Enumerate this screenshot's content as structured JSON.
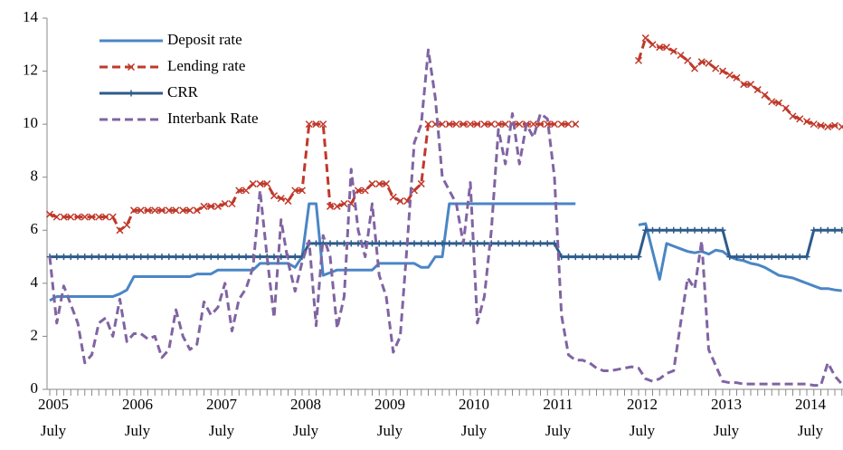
{
  "chart_data": {
    "type": "line",
    "categories": [
      {
        "year": "2005",
        "month": "July"
      },
      null,
      null,
      null,
      null,
      null,
      null,
      null,
      null,
      null,
      null,
      null,
      {
        "year": "2006",
        "month": "July"
      },
      null,
      null,
      null,
      null,
      null,
      null,
      null,
      null,
      null,
      null,
      null,
      {
        "year": "2007",
        "month": "July"
      },
      null,
      null,
      null,
      null,
      null,
      null,
      null,
      null,
      null,
      null,
      null,
      {
        "year": "2008",
        "month": "July"
      },
      null,
      null,
      null,
      null,
      null,
      null,
      null,
      null,
      null,
      null,
      null,
      {
        "year": "2009",
        "month": "July"
      },
      null,
      null,
      null,
      null,
      null,
      null,
      null,
      null,
      null,
      null,
      null,
      {
        "year": "2010",
        "month": "July"
      },
      null,
      null,
      null,
      null,
      null,
      null,
      null,
      null,
      null,
      null,
      null,
      {
        "year": "2011",
        "month": "July"
      },
      null,
      null,
      null,
      null,
      null,
      null,
      null,
      null,
      null,
      null,
      null,
      {
        "year": "2012",
        "month": "July"
      },
      null,
      null,
      null,
      null,
      null,
      null,
      null,
      null,
      null,
      null,
      null,
      {
        "year": "2013",
        "month": "July"
      },
      null,
      null,
      null,
      null,
      null,
      null,
      null,
      null,
      null,
      null,
      null,
      {
        "year": "2014",
        "month": "July"
      },
      null,
      null,
      null,
      null,
      null
    ],
    "series": [
      {
        "name": "Deposit rate",
        "color": "#4a86c5",
        "dash": false,
        "marker": "none",
        "values": [
          3.35,
          3.5,
          3.5,
          3.5,
          3.5,
          3.5,
          3.5,
          3.5,
          3.5,
          3.5,
          3.6,
          3.75,
          4.25,
          4.25,
          4.25,
          4.25,
          4.25,
          4.25,
          4.25,
          4.25,
          4.25,
          4.35,
          4.35,
          4.35,
          4.5,
          4.5,
          4.5,
          4.5,
          4.5,
          4.5,
          4.75,
          4.75,
          4.75,
          4.75,
          4.75,
          4.6,
          5.0,
          7.0,
          7.0,
          4.3,
          4.4,
          4.5,
          4.5,
          4.5,
          4.5,
          4.5,
          4.5,
          4.75,
          4.75,
          4.75,
          4.75,
          4.75,
          4.75,
          4.6,
          4.6,
          5.0,
          5.0,
          7.0,
          7.0,
          7.0,
          7.0,
          7.0,
          7.0,
          7.0,
          7.0,
          7.0,
          7.0,
          7.0,
          7.0,
          7.0,
          7.0,
          7.0,
          7.0,
          7.0,
          7.0,
          7.0,
          null,
          null,
          null,
          null,
          null,
          null,
          null,
          null,
          6.2,
          6.25,
          5.2,
          4.15,
          5.5,
          5.4,
          5.3,
          5.2,
          5.15,
          5.2,
          5.1,
          5.25,
          5.2,
          5.0,
          4.9,
          4.85,
          4.75,
          4.7,
          4.6,
          4.45,
          4.3,
          4.25,
          4.2,
          4.1,
          4.0,
          3.9,
          3.8,
          3.8,
          3.75,
          3.72
        ]
      },
      {
        "name": "Lending rate",
        "color": "#c0392b",
        "dash": true,
        "marker": "x",
        "values": [
          6.6,
          6.5,
          6.5,
          6.5,
          6.5,
          6.5,
          6.5,
          6.5,
          6.5,
          6.5,
          6.0,
          6.2,
          6.75,
          6.75,
          6.75,
          6.75,
          6.75,
          6.75,
          6.75,
          6.75,
          6.75,
          6.75,
          6.9,
          6.9,
          6.9,
          7.0,
          7.0,
          7.5,
          7.5,
          7.75,
          7.75,
          7.75,
          7.3,
          7.2,
          7.1,
          7.5,
          7.5,
          10.0,
          10.0,
          10.0,
          6.9,
          6.9,
          7.0,
          7.0,
          7.5,
          7.5,
          7.75,
          7.75,
          7.75,
          7.25,
          7.1,
          7.1,
          7.5,
          7.75,
          10.0,
          10.0,
          10.0,
          10.0,
          10.0,
          10.0,
          10.0,
          10.0,
          10.0,
          10.0,
          10.0,
          10.0,
          10.0,
          10.0,
          10.0,
          10.0,
          10.0,
          10.0,
          10.0,
          10.0,
          10.0,
          10.0,
          null,
          null,
          null,
          null,
          null,
          null,
          null,
          null,
          12.4,
          13.25,
          13.0,
          12.9,
          12.9,
          12.75,
          12.6,
          12.4,
          12.1,
          12.35,
          12.3,
          12.1,
          12.0,
          11.85,
          11.75,
          11.5,
          11.5,
          11.3,
          11.1,
          10.85,
          10.8,
          10.6,
          10.3,
          10.2,
          10.1,
          10.0,
          9.95,
          9.9,
          9.95,
          9.9
        ]
      },
      {
        "name": "CRR",
        "color": "#2e5b8a",
        "dash": false,
        "marker": "+",
        "values": [
          5,
          5,
          5,
          5,
          5,
          5,
          5,
          5,
          5,
          5,
          5,
          5,
          5,
          5,
          5,
          5,
          5,
          5,
          5,
          5,
          5,
          5,
          5,
          5,
          5,
          5,
          5,
          5,
          5,
          5,
          5,
          5,
          5,
          5,
          5,
          5,
          5,
          5.5,
          5.5,
          5.5,
          5.5,
          5.5,
          5.5,
          5.5,
          5.5,
          5.5,
          5.5,
          5.5,
          5.5,
          5.5,
          5.5,
          5.5,
          5.5,
          5.5,
          5.5,
          5.5,
          5.5,
          5.5,
          5.5,
          5.5,
          5.5,
          5.5,
          5.5,
          5.5,
          5.5,
          5.5,
          5.5,
          5.5,
          5.5,
          5.5,
          5.5,
          5.5,
          5.5,
          5,
          5,
          5,
          5,
          5,
          5,
          5,
          5,
          5,
          5,
          5,
          5,
          6,
          6,
          6,
          6,
          6,
          6,
          6,
          6,
          6,
          6,
          6,
          6,
          5,
          5,
          5,
          5,
          5,
          5,
          5,
          5,
          5,
          5,
          5,
          5,
          6,
          6,
          6,
          6,
          6
        ]
      },
      {
        "name": "Interbank Rate",
        "color": "#8064a2",
        "dash": true,
        "marker": "none",
        "values": [
          5.0,
          2.5,
          3.9,
          3.2,
          2.5,
          1.0,
          1.3,
          2.5,
          2.7,
          2.0,
          3.4,
          1.8,
          2.1,
          2.1,
          1.9,
          2.0,
          1.2,
          1.5,
          3.0,
          2.0,
          1.5,
          1.7,
          3.3,
          2.8,
          3.1,
          4.0,
          2.2,
          3.4,
          3.8,
          4.6,
          7.5,
          5.0,
          2.7,
          6.4,
          4.8,
          3.7,
          4.8,
          5.6,
          2.4,
          5.8,
          5.0,
          2.3,
          3.5,
          8.3,
          6.0,
          5.0,
          7.0,
          4.3,
          3.5,
          1.4,
          2.0,
          5.5,
          9.3,
          10.0,
          12.8,
          11.0,
          8.0,
          7.5,
          7.0,
          5.5,
          7.8,
          2.5,
          3.5,
          6.0,
          9.8,
          8.5,
          10.4,
          8.5,
          10.0,
          9.5,
          10.4,
          10.2,
          8.0,
          2.8,
          1.3,
          1.1,
          1.1,
          1.0,
          0.8,
          0.7,
          0.7,
          0.75,
          0.8,
          0.85,
          0.8,
          0.4,
          0.3,
          0.4,
          0.6,
          0.7,
          2.5,
          4.2,
          3.8,
          5.6,
          1.5,
          0.9,
          0.3,
          0.25,
          0.25,
          0.2,
          0.2,
          0.2,
          0.2,
          0.2,
          0.2,
          0.2,
          0.2,
          0.2,
          0.2,
          0.15,
          0.15,
          1.0,
          0.5,
          0.2
        ]
      }
    ],
    "ylim": [
      0,
      14
    ],
    "yticks": [
      0,
      2,
      4,
      6,
      8,
      10,
      12,
      14
    ],
    "grid": false,
    "legend": "top-left"
  }
}
